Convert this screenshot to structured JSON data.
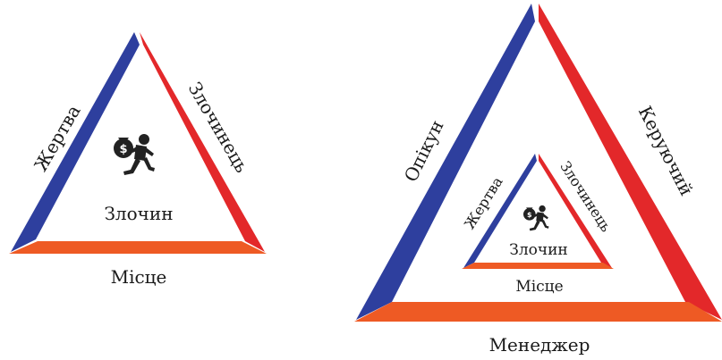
{
  "colors": {
    "left_side": "#2e3f9e",
    "right_side": "#e3282a",
    "base": "#ee5a24",
    "icon": "#222222",
    "text": "#1a1a1a"
  },
  "left_triangle": {
    "left_side_label": "Жертва",
    "right_side_label": "Злочинець",
    "center_label": "Злочин",
    "base_label": "Місце",
    "icon": "running-thief-with-money-bag-icon"
  },
  "right_triangle": {
    "outer": {
      "left_side_label": "Опікун",
      "right_side_label": "Керуючий",
      "base_label": "Менеджер"
    },
    "inner": {
      "left_side_label": "Жертва",
      "right_side_label": "Злочинець",
      "center_label": "Злочин",
      "base_label": "Місце",
      "icon": "running-thief-with-money-bag-icon"
    }
  }
}
